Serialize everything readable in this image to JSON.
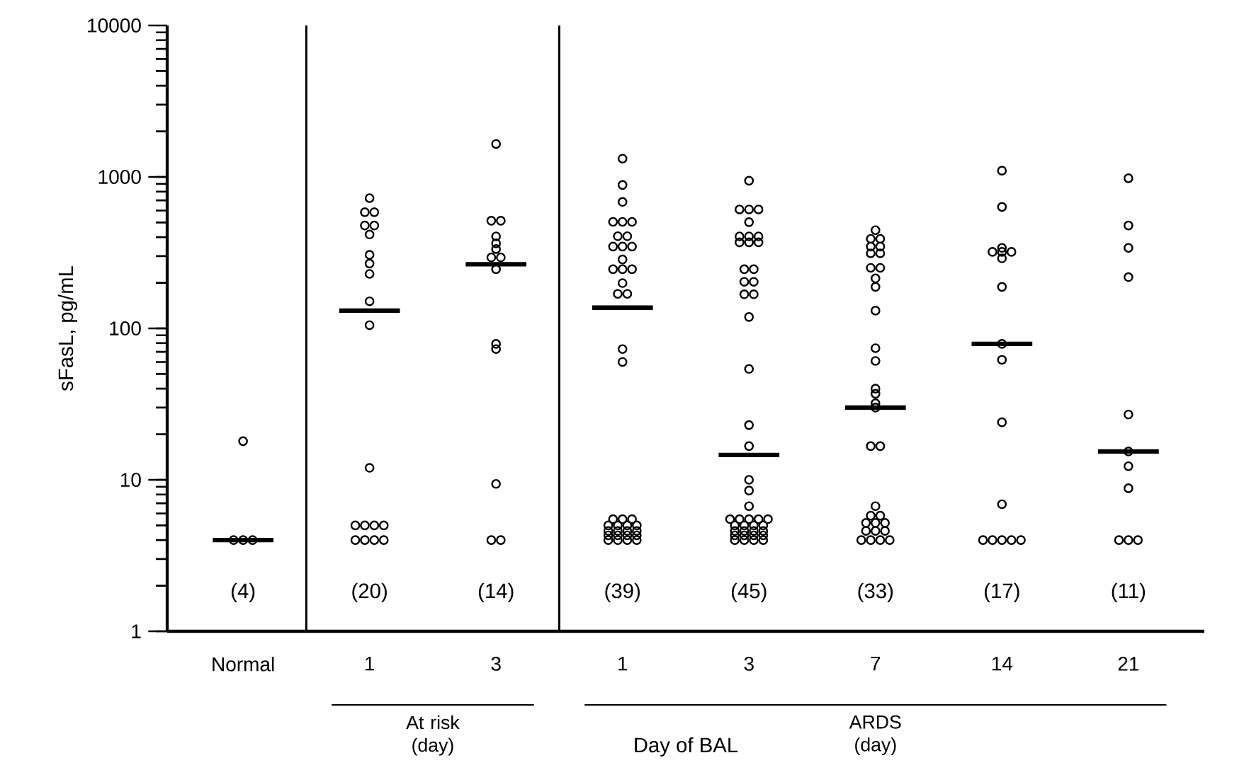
{
  "chart_data": {
    "type": "scatter",
    "ylabel": "sFasL, pg/mL",
    "xlabel": "Day of BAL",
    "categories": [
      "Normal",
      "1",
      "3",
      "1",
      "3",
      "7",
      "14",
      "21"
    ],
    "log": true,
    "ylim": [
      1,
      10000
    ],
    "yticks": [
      1,
      10,
      100,
      1000,
      10000
    ],
    "marker": "circle",
    "color": "#000000",
    "series": [
      {
        "values": [
          18,
          724,
          1650,
          1320,
          944,
          445,
          1100,
          980
        ]
      },
      {
        "values": [
          4,
          585,
          514,
          885,
          610,
          390,
          634,
          478
        ]
      },
      {
        "values": [
          4,
          585,
          514,
          684,
          610,
          390,
          340,
          340
        ]
      },
      {
        "values": [
          4,
          478,
          405,
          505,
          610,
          347,
          320,
          218
        ]
      },
      {
        "values": [
          null,
          478,
          364,
          505,
          503,
          347,
          320,
          27
        ]
      },
      {
        "values": [
          null,
          417,
          334,
          505,
          405,
          313,
          320,
          15.4
        ]
      },
      {
        "values": [
          null,
          306,
          294,
          406,
          405,
          313,
          290,
          12.3
        ]
      },
      {
        "values": [
          null,
          268,
          294,
          406,
          405,
          251,
          188,
          8.8
        ]
      },
      {
        "values": [
          null,
          229,
          246,
          347,
          370,
          251,
          79,
          4
        ]
      },
      {
        "values": [
          null,
          151,
          79,
          347,
          370,
          214,
          62,
          4
        ]
      },
      {
        "values": [
          null,
          105,
          73,
          347,
          370,
          188,
          24,
          4
        ]
      },
      {
        "values": [
          null,
          12,
          9.4,
          285,
          246,
          131,
          6.9,
          null
        ]
      },
      {
        "values": [
          null,
          5,
          4,
          246,
          246,
          74,
          4,
          null
        ]
      },
      {
        "values": [
          null,
          5,
          4,
          246,
          203,
          61,
          4,
          null
        ]
      },
      {
        "values": [
          null,
          5,
          null,
          246,
          203,
          40,
          4,
          null
        ]
      },
      {
        "values": [
          null,
          5,
          null,
          199,
          168,
          37,
          4,
          null
        ]
      },
      {
        "values": [
          null,
          4,
          null,
          169,
          168,
          32,
          4,
          null
        ]
      },
      {
        "values": [
          null,
          4,
          null,
          169,
          119,
          30,
          null,
          null
        ]
      },
      {
        "values": [
          null,
          4,
          null,
          73,
          54,
          16.7,
          null,
          null
        ]
      },
      {
        "values": [
          null,
          4,
          null,
          60,
          23,
          16.7,
          null,
          null
        ]
      },
      {
        "values": [
          null,
          null,
          null,
          5.5,
          16.7,
          6.7,
          null,
          null
        ]
      },
      {
        "values": [
          null,
          null,
          null,
          5.5,
          10,
          5.8,
          null,
          null
        ]
      },
      {
        "values": [
          null,
          null,
          null,
          5.5,
          8.5,
          5.8,
          null,
          null
        ]
      },
      {
        "values": [
          null,
          null,
          null,
          5,
          6.7,
          5.2,
          null,
          null
        ]
      },
      {
        "values": [
          null,
          null,
          null,
          5,
          5.5,
          5.2,
          null,
          null
        ]
      },
      {
        "values": [
          null,
          null,
          null,
          5,
          5.5,
          5.2,
          null,
          null
        ]
      },
      {
        "values": [
          null,
          null,
          null,
          5,
          5.5,
          4.6,
          null,
          null
        ]
      },
      {
        "values": [
          null,
          null,
          null,
          4.6,
          5.5,
          4.6,
          null,
          null
        ]
      },
      {
        "values": [
          null,
          null,
          null,
          4.6,
          5.5,
          4.6,
          null,
          null
        ]
      },
      {
        "values": [
          null,
          null,
          null,
          4.6,
          5,
          4,
          null,
          null
        ]
      },
      {
        "values": [
          null,
          null,
          null,
          4.6,
          5,
          4,
          null,
          null
        ]
      },
      {
        "values": [
          null,
          null,
          null,
          4.3,
          5,
          4,
          null,
          null
        ]
      },
      {
        "values": [
          null,
          null,
          null,
          4.3,
          5,
          4,
          null,
          null
        ]
      },
      {
        "values": [
          null,
          null,
          null,
          4.3,
          4.6,
          null,
          null,
          null
        ]
      },
      {
        "values": [
          null,
          null,
          null,
          4.3,
          4.6,
          null,
          null,
          null
        ]
      },
      {
        "values": [
          null,
          null,
          null,
          4,
          4.6,
          null,
          null,
          null
        ]
      },
      {
        "values": [
          null,
          null,
          null,
          4,
          4.6,
          null,
          null,
          null
        ]
      },
      {
        "values": [
          null,
          null,
          null,
          4,
          4.3,
          null,
          null,
          null
        ]
      },
      {
        "values": [
          null,
          null,
          null,
          4,
          4.3,
          null,
          null,
          null
        ]
      },
      {
        "values": [
          null,
          null,
          null,
          null,
          4.3,
          null,
          null,
          null
        ]
      },
      {
        "values": [
          null,
          null,
          null,
          null,
          4.3,
          null,
          null,
          null
        ]
      },
      {
        "values": [
          null,
          null,
          null,
          null,
          4,
          null,
          null,
          null
        ]
      },
      {
        "values": [
          null,
          null,
          null,
          null,
          4,
          null,
          null,
          null
        ]
      },
      {
        "values": [
          null,
          null,
          null,
          null,
          4,
          null,
          null,
          null
        ]
      },
      {
        "values": [
          null,
          null,
          null,
          null,
          4,
          null,
          null,
          null
        ]
      },
      {
        "type": "box",
        "boxes": [
          {
            "low": 4,
            "q1": 4,
            "median": 4,
            "q3": 4,
            "high": 4
          },
          {
            "low": 131,
            "q1": 131,
            "median": 131,
            "q3": 131,
            "high": 131
          },
          {
            "low": 265,
            "q1": 265,
            "median": 265,
            "q3": 265,
            "high": 265
          },
          {
            "low": 137,
            "q1": 137,
            "median": 137,
            "q3": 137,
            "high": 137
          },
          {
            "low": 14.6,
            "q1": 14.6,
            "median": 14.6,
            "q3": 14.6,
            "high": 14.6
          },
          {
            "low": 30,
            "q1": 30,
            "median": 30,
            "q3": 30,
            "high": 30
          },
          {
            "low": 79,
            "q1": 79,
            "median": 79,
            "q3": 79,
            "high": 79
          },
          {
            "low": 15.4,
            "q1": 15.4,
            "median": 15.4,
            "q3": 15.4,
            "high": 15.4
          }
        ]
      }
    ],
    "annotations": [
      "(4)",
      "(20)",
      "(14)",
      "(39)",
      "(45)",
      "(33)",
      "(17)",
      "(11)",
      "At risk (day)",
      "ARDS (day)"
    ]
  }
}
